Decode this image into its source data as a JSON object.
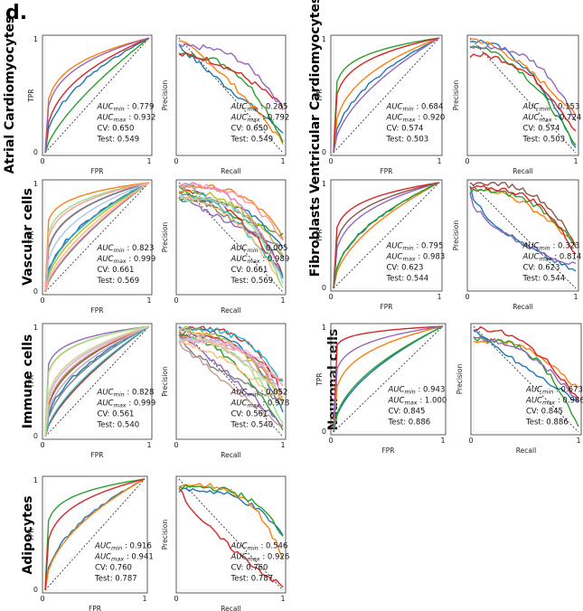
{
  "panel_label": "d.",
  "chart_data": [
    {
      "type": "line",
      "cell_type": "Atrial Cardiomyocytes",
      "roc": {
        "xlabel": "FPR",
        "ylabel": "TPR",
        "xlim": [
          0,
          1
        ],
        "ylim": [
          0,
          1
        ],
        "xticks": [
          "0",
          "1"
        ],
        "yticks": [
          "0",
          "1"
        ],
        "annotations": [
          "AUCmin : 0.779",
          "AUCmax : 0.932",
          "CV: 0.650",
          "Test: 0.549"
        ]
      },
      "pr": {
        "xlabel": "Recall",
        "ylabel": "Precision",
        "xlim": [
          0,
          1
        ],
        "xticks": [
          "0",
          "1"
        ],
        "annotations": [
          "AUCmin : 0.285",
          "AUCmax : 0.792",
          "CV: 0.650",
          "Test: 0.549"
        ]
      },
      "n_curves": 5
    },
    {
      "type": "line",
      "cell_type": "Ventricular Cardiomyocytes",
      "roc": {
        "xlabel": "FPR",
        "ylabel": "TPR",
        "xlim": [
          0,
          1
        ],
        "ylim": [
          0,
          1
        ],
        "xticks": [
          "0",
          "1"
        ],
        "yticks": [
          "0",
          "1"
        ],
        "annotations": [
          "AUCmin : 0.684",
          "AUCmax : 0.920",
          "CV: 0.574",
          "Test: 0.503"
        ]
      },
      "pr": {
        "xlabel": "Recall",
        "ylabel": "Precision",
        "xlim": [
          0,
          1
        ],
        "xticks": [
          "0",
          "1"
        ],
        "annotations": [
          "AUCmin : 0.153",
          "AUCmax : 0.724",
          "CV: 0.574",
          "Test: 0.503"
        ]
      },
      "n_curves": 5
    },
    {
      "type": "line",
      "cell_type": "Vascular cells",
      "roc": {
        "xlabel": "FPR",
        "ylabel": "TPR",
        "xlim": [
          0,
          1
        ],
        "ylim": [
          0,
          1
        ],
        "xticks": [
          "0",
          "1"
        ],
        "yticks": [
          "0",
          "1"
        ],
        "annotations": [
          "AUCmin : 0.823",
          "AUCmax : 0.999",
          "CV: 0.661",
          "Test: 0.569"
        ]
      },
      "pr": {
        "xlabel": "Recall",
        "ylabel": "Precision",
        "xlim": [
          0,
          1
        ],
        "xticks": [
          "0",
          "1"
        ],
        "annotations": [
          "AUCmin : 0.005",
          "AUCmax : 0.989",
          "CV: 0.661",
          "Test: 0.569"
        ]
      },
      "n_curves": 14
    },
    {
      "type": "line",
      "cell_type": "Fibroblasts",
      "roc": {
        "xlabel": "FPR",
        "ylabel": "TPR",
        "xlim": [
          0,
          1
        ],
        "ylim": [
          0,
          1
        ],
        "xticks": [
          "0",
          "1"
        ],
        "yticks": [
          "0",
          "1"
        ],
        "annotations": [
          "AUCmin : 0.795",
          "AUCmax : 0.983",
          "CV: 0.623",
          "Test: 0.544"
        ]
      },
      "pr": {
        "xlabel": "Recall",
        "ylabel": "Precision",
        "xlim": [
          0,
          1
        ],
        "xticks": [
          "0",
          "1"
        ],
        "annotations": [
          "AUCmin : 0.323",
          "AUCmax : 0.814",
          "CV: 0.623",
          "Test: 0.544"
        ]
      },
      "n_curves": 6
    },
    {
      "type": "line",
      "cell_type": "Immune cells",
      "roc": {
        "xlabel": "FPR",
        "ylabel": "TPR",
        "xlim": [
          0,
          1
        ],
        "ylim": [
          0,
          1
        ],
        "xticks": [
          "0",
          "1"
        ],
        "yticks": [
          "0",
          "1"
        ],
        "annotations": [
          "AUCmin : 0.828",
          "AUCmax : 0.999",
          "CV: 0.561",
          "Test: 0.540"
        ]
      },
      "pr": {
        "xlabel": "Recall",
        "ylabel": "Precision",
        "xlim": [
          0,
          1
        ],
        "xticks": [
          "0",
          "1"
        ],
        "annotations": [
          "AUCmin : 0.052",
          "AUCmax : 0.978",
          "CV: 0.561",
          "Test: 0.540"
        ]
      },
      "n_curves": 18
    },
    {
      "type": "line",
      "cell_type": "Neuronal cells",
      "roc": {
        "xlabel": "FPR",
        "ylabel": "TPR",
        "xlim": [
          0,
          1
        ],
        "ylim": [
          0,
          1
        ],
        "xticks": [
          "0",
          "1"
        ],
        "yticks": [
          "0",
          "1"
        ],
        "annotations": [
          "AUCmin : 0.943",
          "AUCmax : 1.000",
          "CV: 0.845",
          "Test: 0.886"
        ]
      },
      "pr": {
        "xlabel": "Recall",
        "ylabel": "Precision",
        "xlim": [
          0,
          1
        ],
        "xticks": [
          "0",
          "1"
        ],
        "annotations": [
          "AUCmin : 0.673",
          "AUCmax : 0.986",
          "CV: 0.845",
          "Test: 0.886"
        ]
      },
      "n_curves": 5
    },
    {
      "type": "line",
      "cell_type": "Adipocytes",
      "roc": {
        "xlabel": "FPR",
        "ylabel": "TPR",
        "xlim": [
          0,
          1
        ],
        "ylim": [
          0,
          1
        ],
        "xticks": [
          "0",
          "1"
        ],
        "yticks": [
          "0",
          "1"
        ],
        "annotations": [
          "AUCmin : 0.916",
          "AUCmax : 0.941",
          "CV: 0.760",
          "Test: 0.787"
        ]
      },
      "pr": {
        "xlabel": "Recall",
        "ylabel": "Precision",
        "xlim": [
          0,
          1
        ],
        "xticks": [
          "0",
          "1"
        ],
        "annotations": [
          "AUCmin : 0.546",
          "AUCmax : 0.926",
          "CV: 0.760",
          "Test: 0.787"
        ]
      },
      "n_curves": 4
    }
  ],
  "palette": [
    "#1f77b4",
    "#ff7f0e",
    "#2ca02c",
    "#d62728",
    "#9467bd",
    "#8c564b",
    "#e377c2",
    "#7f7f7f",
    "#bcbd22",
    "#17becf",
    "#aec7e8",
    "#ffbb78",
    "#98df8a",
    "#ff9896",
    "#c5b0d5",
    "#c49c94",
    "#f7b6d2",
    "#dbdb8d"
  ]
}
